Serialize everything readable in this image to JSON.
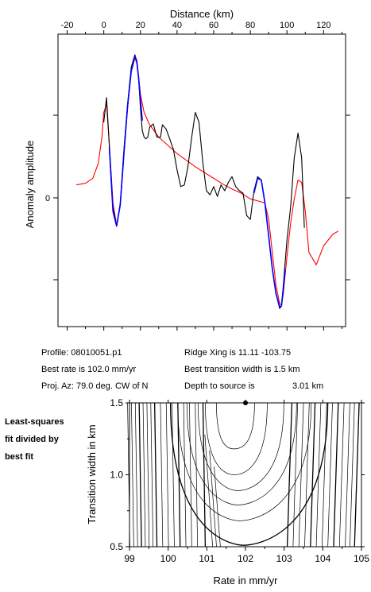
{
  "chart_data": [
    {
      "type": "line",
      "xlabel": "Distance (km)",
      "ylabel": "Anomaly amplitude",
      "xlim": [
        -25,
        132
      ],
      "x_ticks": [
        -20,
        0,
        20,
        40,
        60,
        80,
        100,
        120
      ],
      "y_tick_labels": [
        "0"
      ],
      "ylim": [
        -1.6,
        1.95
      ],
      "grid": false,
      "series": [
        {
          "color": "#000000",
          "x": [
            0,
            1.5,
            3,
            5,
            7,
            9,
            11,
            13,
            15,
            17,
            18,
            19,
            20,
            21,
            22,
            23,
            24,
            25,
            27,
            29,
            31,
            32,
            34,
            36,
            38,
            40,
            42,
            44,
            46,
            48,
            50,
            52,
            54,
            56,
            58,
            60,
            62,
            64,
            66,
            68,
            70,
            72,
            74,
            76,
            78,
            80,
            82,
            84,
            86,
            88,
            90,
            92,
            94,
            96,
            97,
            98,
            100,
            102,
            104,
            106,
            108,
            109.5
          ],
          "y": [
            0.88,
            1.18,
            0.6,
            -0.15,
            -0.38,
            -0.1,
            0.55,
            1.1,
            1.55,
            1.7,
            1.62,
            1.4,
            1.05,
            0.78,
            0.7,
            0.68,
            0.7,
            0.82,
            0.86,
            0.7,
            0.7,
            0.85,
            0.8,
            0.68,
            0.55,
            0.3,
            0.1,
            0.12,
            0.35,
            0.7,
            1.0,
            0.88,
            0.4,
            0.05,
            0.0,
            0.1,
            -0.02,
            0.12,
            0.05,
            0.15,
            0.22,
            0.1,
            0.05,
            0.02,
            -0.25,
            -0.3,
            0.05,
            0.22,
            0.18,
            -0.1,
            -0.5,
            -0.9,
            -1.2,
            -1.38,
            -1.35,
            -1.1,
            -0.55,
            -0.15,
            0.45,
            0.75,
            0.45,
            -0.4
          ]
        },
        {
          "color": "#0000ff",
          "x": [
            3,
            5,
            7,
            9,
            11,
            13,
            15,
            17,
            18,
            19,
            20,
            21
          ],
          "y": [
            0.58,
            -0.2,
            -0.38,
            -0.12,
            0.5,
            1.08,
            1.5,
            1.68,
            1.63,
            1.42,
            1.15,
            0.9
          ]
        },
        {
          "color": "#0000ff",
          "x": [
            82,
            84,
            86,
            88,
            90,
            92,
            94,
            96,
            97,
            98,
            99
          ],
          "y": [
            0.02,
            0.2,
            0.18,
            -0.1,
            -0.5,
            -0.9,
            -1.2,
            -1.36,
            -1.35,
            -1.15,
            -0.9
          ]
        },
        {
          "color": "#ff0000",
          "x": [
            -15,
            -10,
            -6,
            -3,
            -1,
            0,
            1.5,
            3,
            5,
            7,
            9,
            11,
            13,
            15,
            17,
            18,
            19,
            20,
            22,
            25,
            30,
            35,
            40,
            45,
            50,
            55,
            60,
            65,
            70,
            75,
            80,
            85,
            88,
            90,
            92,
            94,
            96,
            97,
            98,
            100,
            102,
            104,
            106,
            108,
            110,
            112,
            116,
            120,
            125,
            128
          ],
          "y": [
            0.12,
            0.14,
            0.2,
            0.38,
            0.7,
            1.0,
            1.1,
            0.62,
            -0.1,
            -0.37,
            -0.12,
            0.5,
            1.05,
            1.5,
            1.66,
            1.6,
            1.42,
            1.22,
            1.0,
            0.85,
            0.7,
            0.6,
            0.5,
            0.42,
            0.34,
            0.27,
            0.2,
            0.13,
            0.07,
            0.02,
            -0.05,
            -0.08,
            -0.1,
            -0.3,
            -0.7,
            -1.1,
            -1.32,
            -1.34,
            -1.2,
            -0.75,
            -0.35,
            -0.05,
            0.18,
            0.15,
            -0.2,
            -0.7,
            -0.85,
            -0.62,
            -0.48,
            -0.44
          ]
        }
      ]
    },
    {
      "type": "contour",
      "xlabel": "Rate in mm/yr",
      "ylabel": "Transition width in km",
      "xlim": [
        99,
        105
      ],
      "ylim": [
        0.5,
        1.5
      ],
      "x_ticks": [
        99,
        100,
        101,
        102,
        103,
        104,
        105
      ],
      "y_ticks": [
        0.5,
        1.0,
        1.5
      ],
      "y_tick_labels": [
        "0.5",
        "1.0",
        "1.5"
      ],
      "best_fit_point": {
        "x": 102.0,
        "y": 1.5
      },
      "contour_vertices": [
        {
          "x": 101.7,
          "y": 1.18
        },
        {
          "x": 101.7,
          "y": 1.0
        },
        {
          "x": 101.8,
          "y": 0.89
        },
        {
          "x": 101.8,
          "y": 0.79
        },
        {
          "x": 101.85,
          "y": 0.68
        },
        {
          "x": 101.95,
          "y": 0.51
        }
      ],
      "left_contour_x": [
        98.95,
        99.05,
        99.15,
        99.25,
        99.35,
        99.45,
        99.55,
        99.65,
        99.8,
        99.95,
        100.1,
        100.25,
        100.4,
        100.55,
        100.7,
        100.9
      ],
      "right_contour_x": [
        103.2,
        103.35,
        103.5,
        103.65,
        103.8,
        103.95,
        104.1,
        104.25,
        104.4,
        104.55,
        104.7,
        104.82,
        104.94
      ]
    }
  ],
  "info": {
    "profile": "Profile: 08010051.p1",
    "rate": "Best rate is 102.0 mm/yr",
    "proj": "Proj. Az: 79.0 deg. CW of N",
    "ridge": "Ridge Xing is 11.11 -103.75",
    "width": "Best transition width is 1.5 km",
    "depth": "Depth to source is",
    "depth_value": "3.01 km"
  },
  "side_note": [
    "Least-squares",
    "fit divided by",
    "best fit"
  ]
}
